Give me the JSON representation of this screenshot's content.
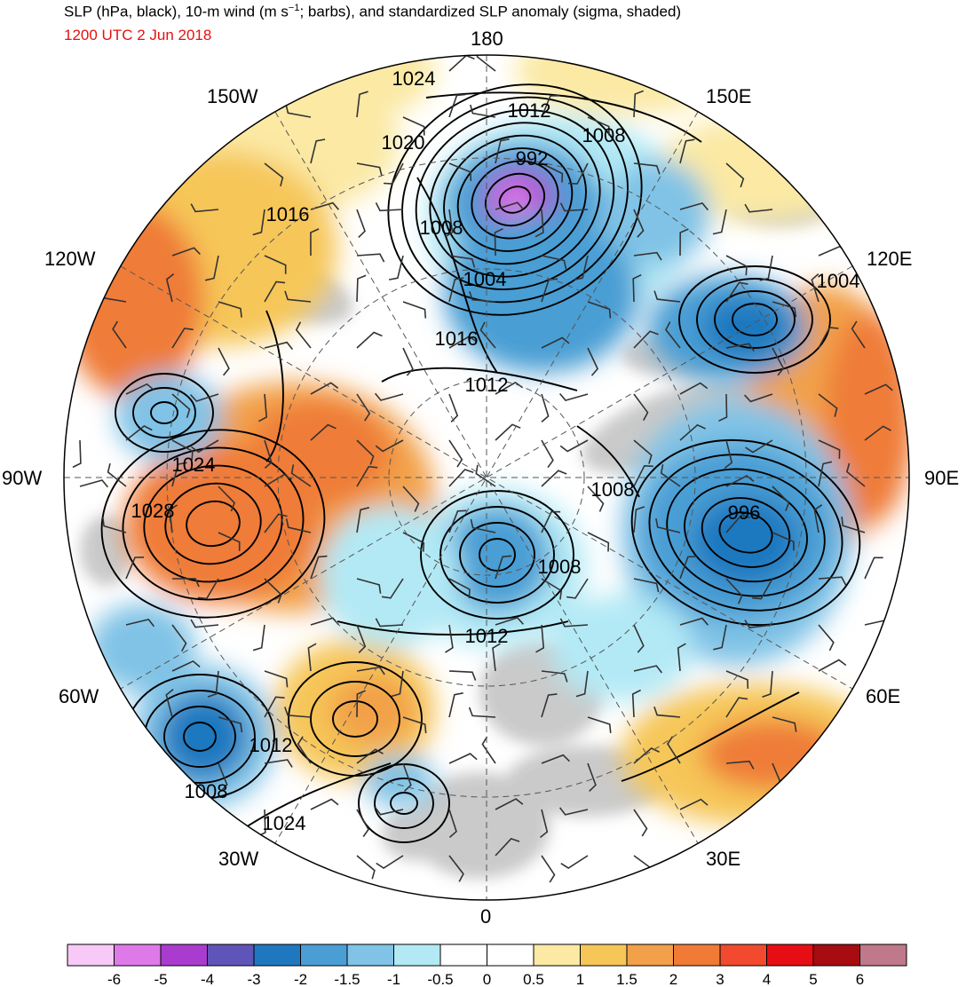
{
  "header": {
    "title_pre": "SLP (hPa, black), 10-m wind (m s",
    "title_sup": "−1",
    "title_post": "; barbs), and standardized SLP anomaly (sigma, shaded)",
    "valid_time": "1200 UTC 2 Jun 2018"
  },
  "map": {
    "projection": "north-polar-stereographic",
    "longitude_labels": {
      "top": "180",
      "bottom": "0",
      "left": "90W",
      "right": "90E",
      "upper_left_1": "150W",
      "upper_left_2": "120W",
      "upper_right_1": "150E",
      "upper_right_2": "120E",
      "lower_left_1": "60W",
      "lower_left_2": "30W",
      "lower_right_1": "60E",
      "lower_right_2": "30E"
    },
    "contour_labels": [
      "1024",
      "1020",
      "1016",
      "1012",
      "1008",
      "992",
      "1008",
      "1004",
      "1016",
      "1012",
      "1004",
      "1024",
      "1028",
      "1008",
      "996",
      "1008",
      "1012",
      "1012",
      "1008",
      "1024"
    ],
    "pressure_centers": [
      {
        "kind": "low",
        "label": "992"
      },
      {
        "kind": "low",
        "label": "996"
      },
      {
        "kind": "high",
        "label": "1028"
      }
    ]
  },
  "colorbar": {
    "tick_labels": [
      "-6",
      "-5",
      "-4",
      "-3",
      "-2",
      "-1.5",
      "-1",
      "-0.5",
      "0",
      "0.5",
      "1",
      "1.5",
      "2",
      "3",
      "4",
      "5",
      "6"
    ],
    "colors": [
      "#f7c9f7",
      "#dd7ae8",
      "#a93ccf",
      "#5f55b9",
      "#1f78bf",
      "#4a9ed4",
      "#80c3e6",
      "#b2e9f5",
      "#ffffff",
      "#ffffff",
      "#fbe9a4",
      "#f6c659",
      "#f2a14a",
      "#ef7b37",
      "#f14a2e",
      "#e60d14",
      "#a60c10",
      "#c0788b"
    ]
  }
}
